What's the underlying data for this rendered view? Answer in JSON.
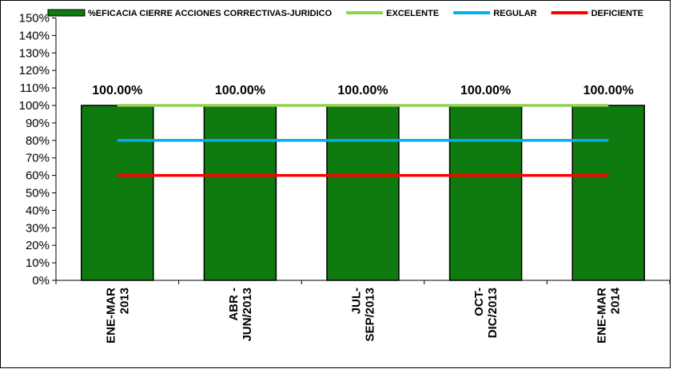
{
  "chart_data": {
    "type": "bar",
    "categories": [
      [
        "ENE-MAR",
        "2013"
      ],
      [
        "ABR -",
        "JUN/2013"
      ],
      [
        "JUL-",
        "SEP/2013"
      ],
      [
        "OCT-",
        "DIC/2013"
      ],
      [
        "ENE-MAR",
        "2014"
      ]
    ],
    "series": [
      {
        "name": "%EFICACIA CIERRE ACCIONES CORRECTIVAS-JURIDICO",
        "type": "bar",
        "values": [
          100,
          100,
          100,
          100,
          100
        ],
        "data_labels": [
          "100.00%",
          "100.00%",
          "100.00%",
          "100.00%",
          "100.00%"
        ],
        "color": "#0f7a0f"
      },
      {
        "name": "EXCELENTE",
        "type": "line",
        "values": [
          100,
          100,
          100,
          100,
          100
        ],
        "color": "#92d050"
      },
      {
        "name": "REGULAR",
        "type": "line",
        "values": [
          80,
          80,
          80,
          80,
          80
        ],
        "color": "#00b0f0"
      },
      {
        "name": "DEFICIENTE",
        "type": "line",
        "values": [
          60,
          60,
          60,
          60,
          60
        ],
        "color": "#ff0000"
      }
    ],
    "ylim": [
      0,
      150
    ],
    "ytick_step": 10,
    "ytick_labels": [
      "0%",
      "10%",
      "20%",
      "30%",
      "40%",
      "50%",
      "60%",
      "70%",
      "80%",
      "90%",
      "100%",
      "110%",
      "120%",
      "130%",
      "140%",
      "150%"
    ],
    "grid": false,
    "legend_position": "top"
  }
}
